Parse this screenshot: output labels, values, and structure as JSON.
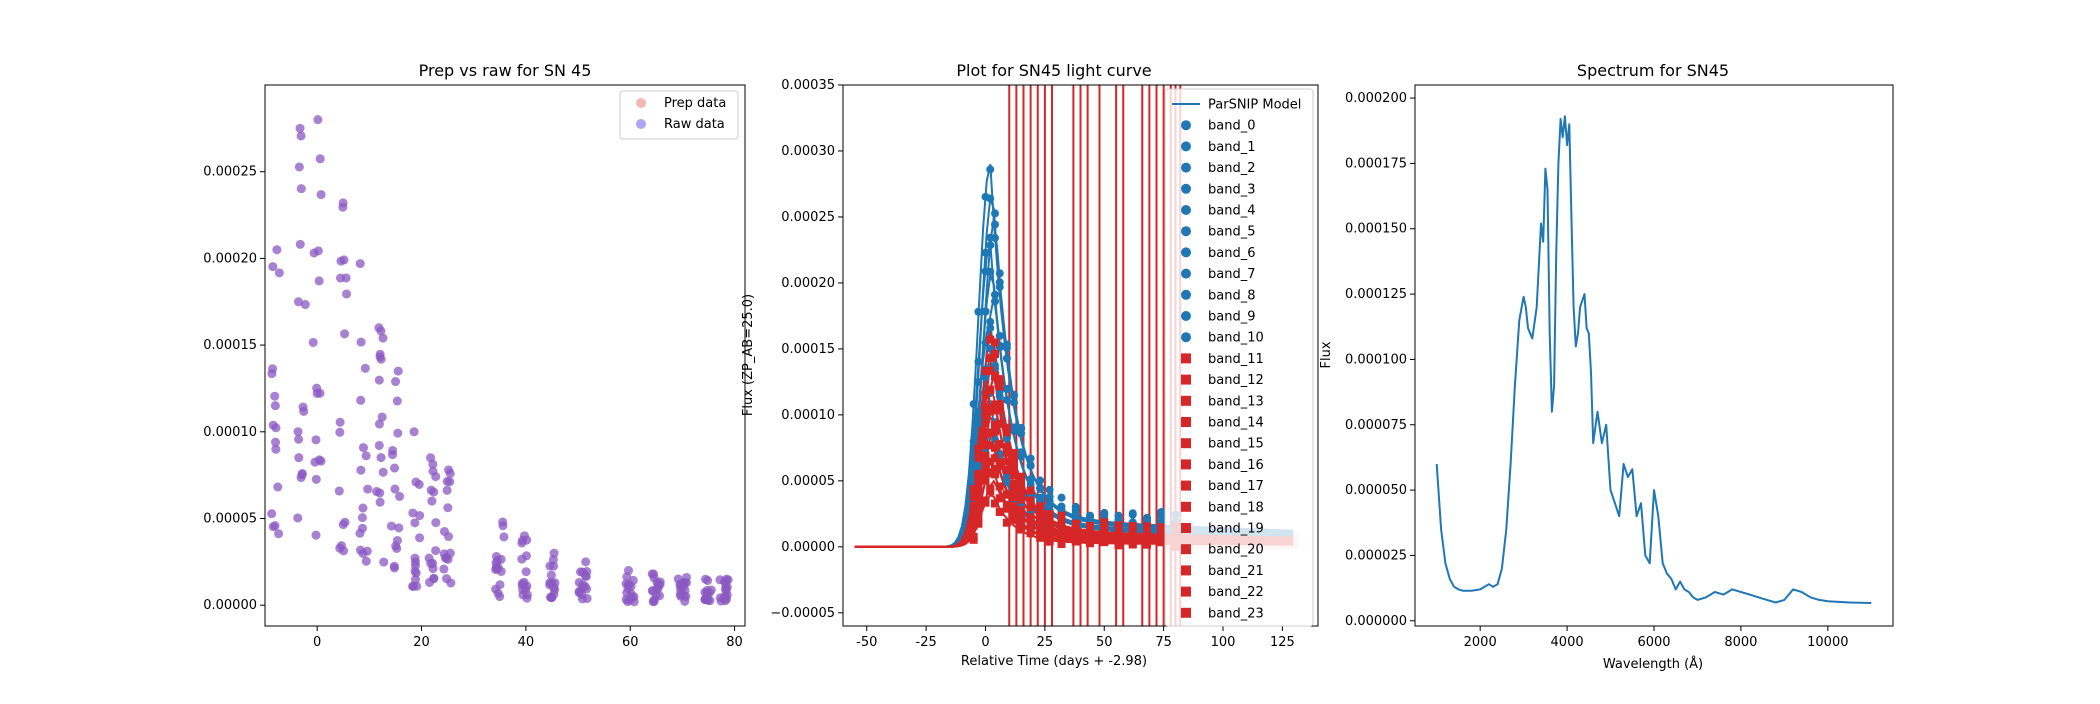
{
  "chart_data": [
    {
      "type": "scatter",
      "title": "Prep vs raw for SN 45",
      "xlabel": "",
      "ylabel": "",
      "xlim": [
        -10,
        82
      ],
      "ylim": [
        -1.2e-05,
        0.0003
      ],
      "xticks": [
        0,
        20,
        40,
        60,
        80
      ],
      "yticks": [
        0.0,
        5e-05,
        0.0001,
        0.00015,
        0.0002,
        0.00025
      ],
      "ytick_labels": [
        "0.00000",
        "0.00005",
        "0.00010",
        "0.00015",
        "0.00020",
        "0.00025"
      ],
      "legend": {
        "placement": "top-right",
        "entries": [
          "Prep data",
          "Raw data"
        ]
      },
      "colors": {
        "prep": "#e8716d",
        "raw": "#5c4cf0"
      },
      "epochs": [
        -8,
        -3,
        0,
        5,
        9,
        12,
        15,
        19,
        22,
        25,
        35,
        40,
        45,
        51,
        60,
        65,
        70,
        75,
        78
      ],
      "epoch_ranges": [
        [
          3.5e-05,
          0.000205
        ],
        [
          4e-05,
          0.000275
        ],
        [
          4e-05,
          0.00028
        ],
        [
          3e-05,
          0.000232
        ],
        [
          2.5e-05,
          0.000197
        ],
        [
          2e-05,
          0.00016
        ],
        [
          2e-05,
          0.000135
        ],
        [
          1e-05,
          0.0001
        ],
        [
          1e-05,
          8.5e-05
        ],
        [
          1e-05,
          7.8e-05
        ],
        [
          5e-06,
          4.8e-05
        ],
        [
          3e-06,
          4e-05
        ],
        [
          3e-06,
          3e-05
        ],
        [
          3e-06,
          2.5e-05
        ],
        [
          2e-06,
          2e-05
        ],
        [
          2e-06,
          1.8e-05
        ],
        [
          2e-06,
          1.6e-05
        ],
        [
          2e-06,
          1.5e-05
        ],
        [
          2e-06,
          1.5e-05
        ]
      ]
    },
    {
      "type": "line",
      "title": "Plot for SN45 light curve",
      "xlabel": "Relative Time (days + -2.98)",
      "ylabel": "Flux (ZP_AB=25.0)",
      "xlim": [
        -60,
        140
      ],
      "ylim": [
        -6e-05,
        0.00035
      ],
      "xticks": [
        -50,
        -25,
        0,
        25,
        50,
        75,
        100,
        125
      ],
      "yticks": [
        -5e-05,
        0.0,
        5e-05,
        0.0001,
        0.00015,
        0.0002,
        0.00025,
        0.0003,
        0.00035
      ],
      "ytick_labels": [
        "−0.00005",
        "0.00000",
        "0.00005",
        "0.00010",
        "0.00015",
        "0.00020",
        "0.00025",
        "0.00030",
        "0.00035"
      ],
      "legend": {
        "placement": "top-right",
        "entries": [
          "ParSNIP Model",
          "band_0",
          "band_1",
          "band_2",
          "band_3",
          "band_4",
          "band_5",
          "band_6",
          "band_7",
          "band_8",
          "band_9",
          "band_10",
          "band_11",
          "band_12",
          "band_13",
          "band_14",
          "band_15",
          "band_16",
          "band_17",
          "band_18",
          "band_19",
          "band_20",
          "band_21",
          "band_22",
          "band_23"
        ]
      },
      "colors": {
        "blue": "#1f77b4",
        "red": "#d62728"
      },
      "vlines_x": [
        10,
        13,
        16,
        19,
        22,
        25,
        28,
        37,
        40,
        43,
        48,
        55,
        58,
        66,
        69,
        72,
        75,
        78,
        80,
        82
      ],
      "blue_peaks": [
        0.00029,
        0.00027,
        0.00025,
        0.00023,
        0.00021,
        0.00019,
        0.00017,
        0.00015,
        0.00013,
        0.00011,
        9e-05
      ],
      "red_peaks": [
        0.000165,
        0.00015,
        0.00014,
        0.00013,
        0.00012,
        0.00011,
        0.0001,
        9e-05,
        8e-05,
        7e-05,
        6e-05,
        5e-05,
        4e-05
      ]
    },
    {
      "type": "line",
      "title": "Spectrum for SN45",
      "xlabel": "Wavelength (Å)",
      "ylabel": "Flux",
      "xlim": [
        500,
        11500
      ],
      "ylim": [
        -2e-06,
        0.000205
      ],
      "xticks": [
        2000,
        4000,
        6000,
        8000,
        10000
      ],
      "yticks": [
        0.0,
        2.5e-05,
        5e-05,
        7.5e-05,
        0.0001,
        0.000125,
        0.00015,
        0.000175,
        0.0002
      ],
      "ytick_labels": [
        "0.000000",
        "0.000025",
        "0.000050",
        "0.000075",
        "0.000100",
        "0.000125",
        "0.000150",
        "0.000175",
        "0.000200"
      ],
      "colors": {
        "line": "#1f77b4"
      },
      "x": [
        1000,
        1100,
        1200,
        1300,
        1400,
        1500,
        1600,
        1800,
        2000,
        2200,
        2300,
        2400,
        2500,
        2600,
        2700,
        2800,
        2900,
        3000,
        3050,
        3100,
        3200,
        3300,
        3400,
        3450,
        3500,
        3550,
        3600,
        3650,
        3700,
        3750,
        3800,
        3850,
        3900,
        3950,
        4000,
        4050,
        4100,
        4150,
        4200,
        4250,
        4300,
        4400,
        4450,
        4500,
        4550,
        4600,
        4700,
        4800,
        4900,
        5000,
        5100,
        5200,
        5300,
        5400,
        5500,
        5600,
        5700,
        5800,
        5900,
        6000,
        6100,
        6200,
        6300,
        6400,
        6500,
        6600,
        6700,
        6800,
        6900,
        7000,
        7200,
        7400,
        7600,
        7800,
        8000,
        8200,
        8400,
        8600,
        8800,
        9000,
        9200,
        9400,
        9600,
        9800,
        10000,
        10500,
        11000
      ],
      "y": [
        6e-05,
        3.5e-05,
        2.2e-05,
        1.6e-05,
        1.3e-05,
        1.2e-05,
        1.15e-05,
        1.15e-05,
        1.2e-05,
        1.4e-05,
        1.3e-05,
        1.4e-05,
        2e-05,
        3.5e-05,
        6e-05,
        9e-05,
        0.000115,
        0.000124,
        0.00012,
        0.000112,
        0.000108,
        0.00012,
        0.000152,
        0.000145,
        0.000173,
        0.000165,
        0.00011,
        8e-05,
        9e-05,
        0.00014,
        0.000175,
        0.000192,
        0.000185,
        0.000193,
        0.000182,
        0.00019,
        0.000155,
        0.00012,
        0.000105,
        0.00011,
        0.00012,
        0.000125,
        0.000112,
        0.00011,
        9.5e-05,
        6.8e-05,
        8e-05,
        6.8e-05,
        7.5e-05,
        5e-05,
        4.5e-05,
        4e-05,
        6e-05,
        5.5e-05,
        5.8e-05,
        4e-05,
        4.5e-05,
        2.5e-05,
        2.2e-05,
        5e-05,
        4e-05,
        2.2e-05,
        1.8e-05,
        1.6e-05,
        1.2e-05,
        1.5e-05,
        1.2e-05,
        1.1e-05,
        9e-06,
        8e-06,
        9e-06,
        1.1e-05,
        1e-05,
        1.2e-05,
        1.1e-05,
        1e-05,
        9e-06,
        8e-06,
        7e-06,
        8e-06,
        1.2e-05,
        1.1e-05,
        9e-06,
        8e-06,
        7.5e-06,
        7e-06,
        6.8e-06
      ]
    }
  ]
}
